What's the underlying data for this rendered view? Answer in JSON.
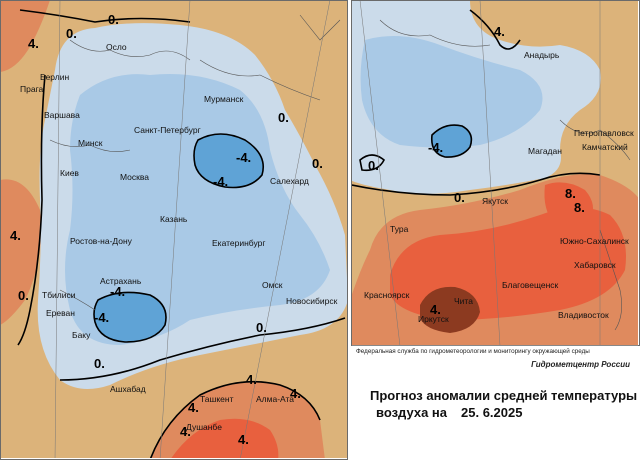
{
  "header": {
    "agency": "Федеральная служба по гидрометеорологии и мониторингу окружающей среды",
    "center": "Гидрометцентр России",
    "title_line1": "Прогноз аномалии средней температуры",
    "title_line2_prefix": "воздуха на",
    "forecast_date": "25. 6.2025"
  },
  "colors": {
    "strong_cold": "#5fa3d6",
    "cold": "#a9c9e6",
    "slight_cold": "#cbdbea",
    "slight_warm": "#dcb37a",
    "warm": "#df8a5e",
    "strong_warm": "#e8603e",
    "very_warm": "#8c3a20",
    "isolines": "#000000"
  },
  "isoline_labels": {
    "west": [
      "0.",
      "4.",
      "0.",
      "0.",
      "-4.",
      "-4.",
      "4.",
      "0.",
      "0.",
      "-4.",
      "-4.",
      "0.",
      "0.",
      "4.",
      "4.",
      "4.",
      "4.",
      "4."
    ],
    "east": [
      "4.",
      "-4.",
      "0.",
      "8.",
      "8.",
      "0.",
      "4."
    ]
  },
  "cities": {
    "west": [
      "Осло",
      "Берлин",
      "Прага",
      "Варшава",
      "Минск",
      "Киев",
      "Санкт-Петербург",
      "Мурманск",
      "Москва",
      "Казань",
      "Салехард",
      "Екатеринбург",
      "Ростов-на-Дону",
      "Астрахань",
      "Тбилиси",
      "Ереван",
      "Баку",
      "Омск",
      "Новосибирск",
      "Ашхабад",
      "Ташкент",
      "Алма-Ата",
      "Душанбе"
    ],
    "east": [
      "Анадырь",
      "Петропавловск",
      "Камчатский",
      "Магадан",
      "Якутск",
      "Тура",
      "Южно-Сахалинск",
      "Хабаровск",
      "Благовещенск",
      "Красноярск",
      "Чита",
      "Иркутск",
      "Владивосток"
    ]
  }
}
